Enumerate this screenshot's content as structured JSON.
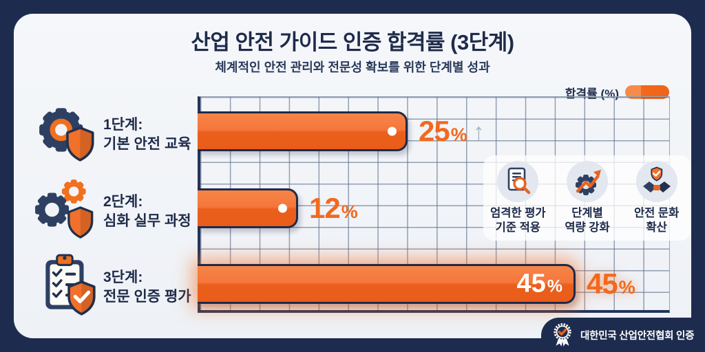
{
  "title": "산업 안전 가이드 인증 합격률 (3단계)",
  "subtitle": "체계적인 안전 관리와 전문성 확보를 위한 단계별 성과",
  "legend": {
    "label": "합격률 (%)"
  },
  "colors": {
    "frame_navy": "#1D2C4E",
    "text_navy": "#1E2B4A",
    "panel_bg": "#F1F4F8",
    "accent_orange": "#F2691E",
    "bar_orange_light": "#F5763B",
    "bar_orange_dark": "#E95C1A",
    "arrow_gray": "#AAB5C5"
  },
  "chart_data": {
    "type": "bar",
    "orientation": "horizontal",
    "title": "산업 안전 가이드 인증 합격률 (3단계)",
    "subtitle": "체계적인 안전 관리와 전문성 확보를 위한 단계별 성과",
    "categories": [
      "1단계: 기본 안전 교육",
      "2단계: 심화 실무 과정",
      "3단계: 전문 인증 평가"
    ],
    "values": [
      25,
      12,
      45
    ],
    "unit": "%",
    "xlim": [
      0,
      57
    ],
    "grid": true,
    "legend_entries": [
      "합격률 (%)"
    ],
    "legend_position": "top-right",
    "annotations": [
      "25% ↑",
      "12%",
      "45% (막대 내부 및 외부 강조)"
    ]
  },
  "stages": [
    {
      "title": "1단계:",
      "subtitle": "기본 안전 교육",
      "value": "25",
      "unit": "%",
      "arrow": "↑",
      "icon": "gear-shield-icon"
    },
    {
      "title": "2단계:",
      "subtitle": "심화 실무 과정",
      "value": "12",
      "unit": "%",
      "icon": "double-gear-shield-icon"
    },
    {
      "title": "3단계:",
      "subtitle": "전문 인증 평가",
      "value": "45",
      "unit": "%",
      "icon": "clipboard-shield-icon"
    }
  ],
  "highlights": [
    {
      "line1": "엄격한 평가",
      "line2": "기준 적용",
      "icon": "document-magnifier-icon"
    },
    {
      "line1": "단계별",
      "line2": "역량 강화",
      "icon": "gear-growth-arrow-icon"
    },
    {
      "line1": "안전 문화",
      "line2": "확산",
      "icon": "handshake-shield-icon"
    }
  ],
  "footer_badge": {
    "label": "대한민국 산업안전협회 인증",
    "icon": "medal-icon"
  }
}
